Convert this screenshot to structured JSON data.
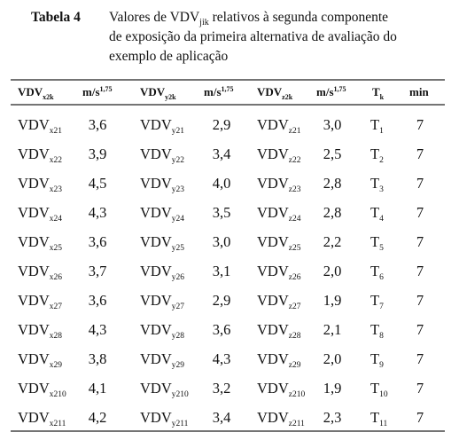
{
  "caption": {
    "label": "Tabela 4",
    "line1": {
      "pre": "Valores de VDV",
      "sub": "jik",
      "post": " relativos à segunda componente"
    },
    "line2": "de exposição da primeira alternativa de avaliação do",
    "line3": "exemplo de aplicação"
  },
  "table": {
    "header": [
      {
        "main": "VDV",
        "sub": "x2k"
      },
      {
        "main": "m/s",
        "sup": "1,75"
      },
      {
        "main": "VDV",
        "sub": "y2k"
      },
      {
        "main": "m/s",
        "sup": "1,75"
      },
      {
        "main": "VDV",
        "sub": "z2k"
      },
      {
        "main": "m/s",
        "sup": "1,75"
      },
      {
        "main": "T",
        "sub": "k"
      },
      {
        "main": "min"
      }
    ],
    "rows": [
      [
        {
          "main": "VDV",
          "sub": "x21"
        },
        "3,6",
        {
          "main": "VDV",
          "sub": "y21"
        },
        "2,9",
        {
          "main": "VDV",
          "sub": "z21"
        },
        "3,0",
        {
          "main": "T",
          "sub": "1"
        },
        "7"
      ],
      [
        {
          "main": "VDV",
          "sub": "x22"
        },
        "3,9",
        {
          "main": "VDV",
          "sub": "y22"
        },
        "3,4",
        {
          "main": "VDV",
          "sub": "z22"
        },
        "2,5",
        {
          "main": "T",
          "sub": "2"
        },
        "7"
      ],
      [
        {
          "main": "VDV",
          "sub": "x23"
        },
        "4,5",
        {
          "main": "VDV",
          "sub": "y23"
        },
        "4,0",
        {
          "main": "VDV",
          "sub": "z23"
        },
        "2,8",
        {
          "main": "T",
          "sub": "3"
        },
        "7"
      ],
      [
        {
          "main": "VDV",
          "sub": "x24"
        },
        "4,3",
        {
          "main": "VDV",
          "sub": "y24"
        },
        "3,5",
        {
          "main": "VDV",
          "sub": "z24"
        },
        "2,8",
        {
          "main": "T",
          "sub": "4"
        },
        "7"
      ],
      [
        {
          "main": "VDV",
          "sub": "x25"
        },
        "3,6",
        {
          "main": "VDV",
          "sub": "y25"
        },
        "3,0",
        {
          "main": "VDV",
          "sub": "z25"
        },
        "2,2",
        {
          "main": "T",
          "sub": "5"
        },
        "7"
      ],
      [
        {
          "main": "VDV",
          "sub": "x26"
        },
        "3,7",
        {
          "main": "VDV",
          "sub": "y26"
        },
        "3,1",
        {
          "main": "VDV",
          "sub": "z26"
        },
        "2,0",
        {
          "main": "T",
          "sub": "6"
        },
        "7"
      ],
      [
        {
          "main": "VDV",
          "sub": "x27"
        },
        "3,6",
        {
          "main": "VDV",
          "sub": "y27"
        },
        "2,9",
        {
          "main": "VDV",
          "sub": "z27"
        },
        "1,9",
        {
          "main": "T",
          "sub": "7"
        },
        "7"
      ],
      [
        {
          "main": "VDV",
          "sub": "x28"
        },
        "4,3",
        {
          "main": "VDV",
          "sub": "y28"
        },
        "3,6",
        {
          "main": "VDV",
          "sub": "z28"
        },
        "2,1",
        {
          "main": "T",
          "sub": "8"
        },
        "7"
      ],
      [
        {
          "main": "VDV",
          "sub": "x29"
        },
        "3,8",
        {
          "main": "VDV",
          "sub": "y29"
        },
        "4,3",
        {
          "main": "VDV",
          "sub": "z29"
        },
        "2,0",
        {
          "main": "T",
          "sub": "9"
        },
        "7"
      ],
      [
        {
          "main": "VDV",
          "sub": "x210"
        },
        "4,1",
        {
          "main": "VDV",
          "sub": "y210"
        },
        "3,2",
        {
          "main": "VDV",
          "sub": "z210"
        },
        "1,9",
        {
          "main": "T",
          "sub": "10"
        },
        "7"
      ],
      [
        {
          "main": "VDV",
          "sub": "x211"
        },
        "4,2",
        {
          "main": "VDV",
          "sub": "y211"
        },
        "3,4",
        {
          "main": "VDV",
          "sub": "z211"
        },
        "2,3",
        {
          "main": "T",
          "sub": "11"
        },
        "7"
      ]
    ]
  }
}
